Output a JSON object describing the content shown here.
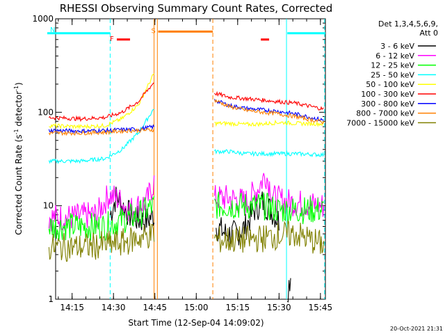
{
  "chart_data": {
    "type": "line",
    "title": "RHESSI Observing Summary Count Rates, Corrected",
    "xlabel": "Start Time (12-Sep-04 14:09:02)",
    "ylabel": "Corrected Count Rate (s",
    "ylabel_sup1": "-1",
    "ylabel_mid": " detector",
    "ylabel_sup2": "-1",
    "ylabel_end": ")",
    "footer": "20-Oct-2021 21:31",
    "y_scale": "log",
    "ylim": [
      1,
      1000
    ],
    "xlim_minutes": [
      14.0,
      15.78
    ],
    "x_ticks": [
      {
        "label": "14:15",
        "hour": 14.25
      },
      {
        "label": "14:30",
        "hour": 14.5
      },
      {
        "label": "14:45",
        "hour": 14.75
      },
      {
        "label": "15:00",
        "hour": 15.0
      },
      {
        "label": "15:15",
        "hour": 15.25
      },
      {
        "label": "15:30",
        "hour": 15.5
      },
      {
        "label": "15:45",
        "hour": 15.75
      }
    ],
    "y_ticks": [
      {
        "label": "1",
        "value": 1
      },
      {
        "label": "10",
        "value": 10
      },
      {
        "label": "100",
        "value": 100
      },
      {
        "label": "1000",
        "value": 1000
      }
    ],
    "legend_header": [
      "Det 1,3,4,5,6,9,",
      "Att 0"
    ],
    "series": [
      {
        "name": "3 - 6 keV",
        "color": "#000000",
        "seg1": [
          [
            14.48,
            8
          ],
          [
            14.52,
            13
          ],
          [
            14.55,
            10
          ],
          [
            14.6,
            8
          ],
          [
            14.65,
            7
          ],
          [
            14.7,
            7
          ],
          [
            14.745,
            8
          ]
        ],
        "seg2": [
          [
            15.12,
            6
          ],
          [
            15.18,
            5
          ],
          [
            15.24,
            5
          ],
          [
            15.3,
            6
          ],
          [
            15.35,
            9
          ],
          [
            15.4,
            11
          ],
          [
            15.45,
            9
          ],
          [
            15.5,
            7
          ]
        ],
        "seg3": [
          [
            15.55,
            1.2
          ],
          [
            15.57,
            1.8
          ]
        ]
      },
      {
        "name": "6 - 12 keV",
        "color": "#ff00ff",
        "seg1": [
          [
            14.11,
            7.5
          ],
          [
            14.25,
            7.5
          ],
          [
            14.4,
            8
          ],
          [
            14.47,
            13
          ],
          [
            14.52,
            12
          ],
          [
            14.6,
            9
          ],
          [
            14.7,
            11
          ],
          [
            14.745,
            18
          ]
        ],
        "seg2": [
          [
            15.11,
            12
          ],
          [
            15.2,
            12
          ],
          [
            15.3,
            11
          ],
          [
            15.37,
            15
          ],
          [
            15.42,
            22
          ],
          [
            15.47,
            12
          ],
          [
            15.55,
            11
          ],
          [
            15.77,
            10
          ]
        ]
      },
      {
        "name": "12 - 25 keV",
        "color": "#00ff00",
        "seg1": [
          [
            14.11,
            6
          ],
          [
            14.3,
            6
          ],
          [
            14.45,
            6
          ],
          [
            14.55,
            7
          ],
          [
            14.65,
            8
          ],
          [
            14.745,
            10
          ]
        ],
        "seg2": [
          [
            15.11,
            10
          ],
          [
            15.2,
            10
          ],
          [
            15.3,
            10
          ],
          [
            15.4,
            10
          ],
          [
            15.5,
            9
          ],
          [
            15.65,
            9
          ],
          [
            15.77,
            9
          ]
        ]
      },
      {
        "name": "25 - 50 keV",
        "color": "#00ffff",
        "seg1": [
          [
            14.11,
            30
          ],
          [
            14.3,
            30
          ],
          [
            14.45,
            32
          ],
          [
            14.55,
            40
          ],
          [
            14.65,
            60
          ],
          [
            14.745,
            110
          ]
        ],
        "seg2": [
          [
            15.11,
            38
          ],
          [
            15.2,
            38
          ],
          [
            15.3,
            36
          ],
          [
            15.4,
            36
          ],
          [
            15.5,
            36
          ],
          [
            15.6,
            36
          ],
          [
            15.77,
            35
          ]
        ]
      },
      {
        "name": "50 - 100 keV",
        "color": "#ffff00",
        "seg1": [
          [
            14.11,
            72
          ],
          [
            14.3,
            70
          ],
          [
            14.45,
            72
          ],
          [
            14.55,
            85
          ],
          [
            14.65,
            120
          ],
          [
            14.745,
            260
          ]
        ],
        "seg2": [
          [
            15.11,
            76
          ],
          [
            15.2,
            76
          ],
          [
            15.3,
            74
          ],
          [
            15.4,
            75
          ],
          [
            15.5,
            78
          ],
          [
            15.6,
            76
          ],
          [
            15.77,
            75
          ]
        ]
      },
      {
        "name": "100 - 300 keV",
        "color": "#ff0000",
        "seg1": [
          [
            14.11,
            88
          ],
          [
            14.3,
            85
          ],
          [
            14.45,
            88
          ],
          [
            14.55,
            100
          ],
          [
            14.65,
            130
          ],
          [
            14.745,
            210
          ]
        ],
        "seg2": [
          [
            15.11,
            160
          ],
          [
            15.2,
            145
          ],
          [
            15.3,
            140
          ],
          [
            15.4,
            135
          ],
          [
            15.5,
            130
          ],
          [
            15.6,
            125
          ],
          [
            15.77,
            108
          ]
        ]
      },
      {
        "name": "300 - 800 keV",
        "color": "#0000ff",
        "seg1": [
          [
            14.11,
            64
          ],
          [
            14.3,
            63
          ],
          [
            14.45,
            64
          ],
          [
            14.55,
            65
          ],
          [
            14.65,
            66
          ],
          [
            14.745,
            70
          ]
        ],
        "seg2": [
          [
            15.11,
            135
          ],
          [
            15.2,
            118
          ],
          [
            15.3,
            110
          ],
          [
            15.4,
            106
          ],
          [
            15.5,
            102
          ],
          [
            15.6,
            96
          ],
          [
            15.77,
            82
          ]
        ]
      },
      {
        "name": "800 - 7000 keV",
        "color": "#ff8000",
        "seg1": [
          [
            14.11,
            60
          ],
          [
            14.3,
            60
          ],
          [
            14.45,
            61
          ],
          [
            14.55,
            63
          ],
          [
            14.65,
            64
          ],
          [
            14.745,
            65
          ]
        ],
        "seg2": [
          [
            15.11,
            135
          ],
          [
            15.2,
            115
          ],
          [
            15.3,
            105
          ],
          [
            15.4,
            100
          ],
          [
            15.5,
            96
          ],
          [
            15.6,
            90
          ],
          [
            15.77,
            78
          ]
        ]
      },
      {
        "name": "7000 - 15000 keV",
        "color": "#808000",
        "seg1": [
          [
            14.11,
            3.6
          ],
          [
            14.3,
            3.6
          ],
          [
            14.45,
            3.8
          ],
          [
            14.55,
            4
          ],
          [
            14.65,
            4.5
          ],
          [
            14.745,
            5
          ]
        ],
        "seg2": [
          [
            15.11,
            4.3
          ],
          [
            15.2,
            4.3
          ],
          [
            15.3,
            4.3
          ],
          [
            15.4,
            4.5
          ],
          [
            15.5,
            4.8
          ],
          [
            15.6,
            5
          ],
          [
            15.77,
            3.8
          ]
        ]
      }
    ],
    "flags": [
      {
        "label": "F",
        "color": "#ff0000",
        "level": 600,
        "ranges": [
          [
            14.52,
            14.6
          ],
          [
            15.39,
            15.44
          ]
        ]
      },
      {
        "label": "N",
        "color": "#00ffff",
        "level": 700,
        "ranges": [
          [
            14.1,
            14.48
          ],
          [
            15.55,
            15.78
          ]
        ]
      },
      {
        "label": "S",
        "color": "#ff8000",
        "level": 730,
        "ranges": [
          [
            14.77,
            15.1
          ]
        ]
      }
    ],
    "vlines": [
      {
        "hour": 14.48,
        "color": "#00ffff",
        "style": "dashed"
      },
      {
        "hour": 14.745,
        "color": "#ff8000",
        "style": "solid"
      },
      {
        "hour": 14.765,
        "color": "#ff8000",
        "style": "solid"
      },
      {
        "hour": 15.1,
        "color": "#ff8000",
        "style": "dashed"
      },
      {
        "hour": 15.545,
        "color": "#00ffff",
        "style": "solid"
      },
      {
        "hour": 15.775,
        "color": "#00ffff",
        "style": "dashed"
      }
    ]
  }
}
